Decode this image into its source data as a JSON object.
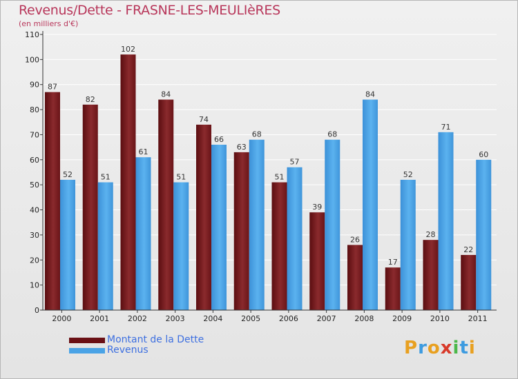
{
  "title": "Revenus/Dette - FRASNE-LES-MEULIèRES",
  "subtitle": "(en milliers d'€)",
  "colors": {
    "title": "#b8365a",
    "debt": "#7a1a1c",
    "revenue": "#4aa3e6",
    "legend_text": "#3d6fe0"
  },
  "logo": {
    "text": "Proxiti",
    "letters": [
      "P",
      "r",
      "o",
      "x",
      "i",
      "t",
      "i"
    ]
  },
  "chart_data": {
    "type": "bar",
    "categories": [
      "2000",
      "2001",
      "2002",
      "2003",
      "2004",
      "2005",
      "2006",
      "2007",
      "2008",
      "2009",
      "2010",
      "2011"
    ],
    "series": [
      {
        "name": "Montant de la Dette",
        "values": [
          87,
          82,
          102,
          84,
          74,
          63,
          51,
          39,
          26,
          17,
          28,
          22
        ]
      },
      {
        "name": "Revenus",
        "values": [
          52,
          51,
          61,
          51,
          66,
          68,
          57,
          68,
          84,
          52,
          71,
          60
        ]
      }
    ],
    "ylim": [
      0,
      110
    ],
    "yticks": [
      0,
      10,
      20,
      30,
      40,
      50,
      60,
      70,
      80,
      90,
      100,
      110
    ],
    "grid": true,
    "legend_position": "bottom-left"
  }
}
